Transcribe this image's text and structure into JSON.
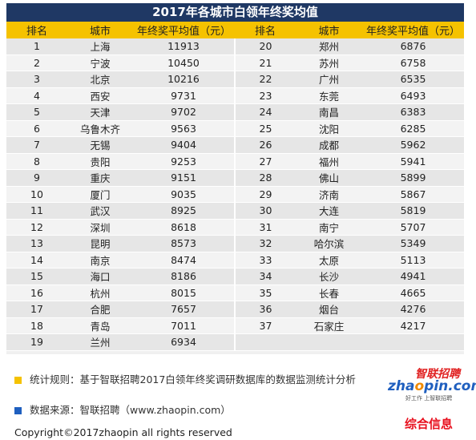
{
  "title": "2017年各城市白领年终奖均值",
  "headers": [
    "排名",
    "城市",
    "年终奖平均值（元）",
    "排名",
    "城市",
    "年终奖平均值（元）"
  ],
  "rows": [
    {
      "rank": "1",
      "city": "上海",
      "value": "11913",
      "rank2": "20",
      "city2": "郑州",
      "value2": "6876"
    },
    {
      "rank": "2",
      "city": "宁波",
      "value": "10450",
      "rank2": "21",
      "city2": "苏州",
      "value2": "6758"
    },
    {
      "rank": "3",
      "city": "北京",
      "value": "10216",
      "rank2": "22",
      "city2": "广州",
      "value2": "6535"
    },
    {
      "rank": "4",
      "city": "西安",
      "value": "9731",
      "rank2": "23",
      "city2": "东莞",
      "value2": "6493"
    },
    {
      "rank": "5",
      "city": "天津",
      "value": "9702",
      "rank2": "24",
      "city2": "南昌",
      "value2": "6383"
    },
    {
      "rank": "6",
      "city": "乌鲁木齐",
      "value": "9563",
      "rank2": "25",
      "city2": "沈阳",
      "value2": "6285"
    },
    {
      "rank": "7",
      "city": "无锡",
      "value": "9404",
      "rank2": "26",
      "city2": "成都",
      "value2": "5962"
    },
    {
      "rank": "8",
      "city": "贵阳",
      "value": "9253",
      "rank2": "27",
      "city2": "福州",
      "value2": "5941"
    },
    {
      "rank": "9",
      "city": "重庆",
      "value": "9151",
      "rank2": "28",
      "city2": "佛山",
      "value2": "5899"
    },
    {
      "rank": "10",
      "city": "厦门",
      "value": "9035",
      "rank2": "29",
      "city2": "济南",
      "value2": "5867"
    },
    {
      "rank": "11",
      "city": "武汉",
      "value": "8925",
      "rank2": "30",
      "city2": "大连",
      "value2": "5819"
    },
    {
      "rank": "12",
      "city": "深圳",
      "value": "8618",
      "rank2": "31",
      "city2": "南宁",
      "value2": "5707"
    },
    {
      "rank": "13",
      "city": "昆明",
      "value": "8573",
      "rank2": "32",
      "city2": "哈尔滨",
      "value2": "5349"
    },
    {
      "rank": "14",
      "city": "南京",
      "value": "8474",
      "rank2": "33",
      "city2": "太原",
      "value2": "5113"
    },
    {
      "rank": "15",
      "city": "海口",
      "value": "8186",
      "rank2": "34",
      "city2": "长沙",
      "value2": "4941"
    },
    {
      "rank": "16",
      "city": "杭州",
      "value": "8015",
      "rank2": "35",
      "city2": "长春",
      "value2": "4665"
    },
    {
      "rank": "17",
      "city": "合肥",
      "value": "7657",
      "rank2": "36",
      "city2": "烟台",
      "value2": "4276"
    },
    {
      "rank": "18",
      "city": "青岛",
      "value": "7011",
      "rank2": "37",
      "city2": "石家庄",
      "value2": "4217"
    },
    {
      "rank": "19",
      "city": "兰州",
      "value": "6934",
      "rank2": "",
      "city2": "",
      "value2": ""
    }
  ],
  "notes": {
    "rule": "统计规则：基于智联招聘2017白领年终奖调研数据库的数据监测统计分析",
    "source": "数据来源：智联招聘（www.zhaopin.com）"
  },
  "logo": {
    "cn": "智联招聘",
    "en_a": "zha",
    "en_o": "o",
    "en_b": "pin.com",
    "tagline": "好工作 上智联招聘"
  },
  "watermark": "综合信息",
  "copyright": "Copyright©2017zhaopin all rights reserved",
  "colors": {
    "title_bg": "#1f3864",
    "header_bg": "#f5c200",
    "note_yellow": "#f5c200",
    "note_blue": "#1f5fbf",
    "watermark": "#e8101e"
  }
}
